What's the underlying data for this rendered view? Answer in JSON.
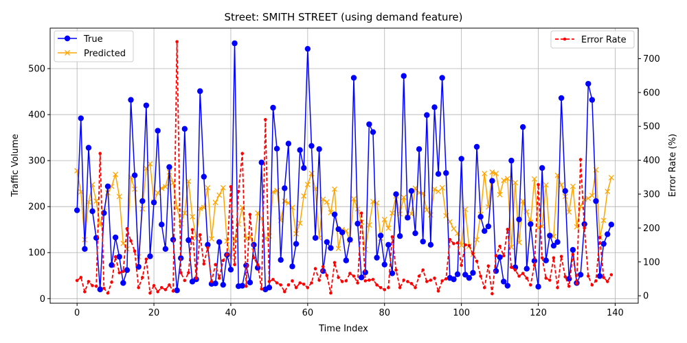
{
  "chart_data": {
    "type": "line",
    "title": "Street: SMITH STREET (using demand feature)",
    "xlabel": "Time Index",
    "ylabel_left": "Traffic Volume",
    "ylabel_right": "Error Rate (%)",
    "xlim": [
      -7,
      146
    ],
    "ylim_left": [
      -10,
      588
    ],
    "ylim_right": [
      -22,
      790
    ],
    "x_ticks": [
      0,
      20,
      40,
      60,
      80,
      100,
      120,
      140
    ],
    "y_ticks_left": [
      0,
      100,
      200,
      300,
      400,
      500
    ],
    "y_ticks_right": [
      0,
      100,
      200,
      300,
      400,
      500,
      600,
      700
    ],
    "grid": true,
    "legend_left": "upper-left",
    "legend_right": "upper-right",
    "colors": {
      "true": "#0000ff",
      "predicted": "#ffa500",
      "error": "#ff0000"
    },
    "series": [
      {
        "name": "True",
        "axis": "left",
        "values": [
          192,
          392,
          108,
          328,
          190,
          132,
          20,
          186,
          244,
          73,
          133,
          91,
          34,
          62,
          432,
          268,
          69,
          212,
          420,
          92,
          209,
          365,
          161,
          108,
          286,
          128,
          18,
          88,
          369,
          127,
          37,
          42,
          451,
          265,
          117,
          32,
          33,
          123,
          30,
          95,
          63,
          555,
          27,
          28,
          72,
          35,
          117,
          67,
          296,
          20,
          24,
          415,
          326,
          84,
          240,
          337,
          70,
          119,
          323,
          284,
          543,
          332,
          132,
          325,
          60,
          123,
          110,
          183,
          151,
          144,
          83,
          128,
          480,
          163,
          46,
          57,
          379,
          362,
          89,
          137,
          74,
          117,
          55,
          227,
          136,
          484,
          176,
          234,
          142,
          325,
          124,
          399,
          117,
          416,
          271,
          480,
          273,
          45,
          42,
          53,
          304,
          52,
          45,
          56,
          330,
          178,
          147,
          157,
          256,
          60,
          90,
          37,
          28,
          300,
          68,
          172,
          373,
          65,
          162,
          82,
          26,
          284,
          83,
          137,
          115,
          123,
          436,
          234,
          43,
          106,
          34,
          52,
          162,
          467,
          432,
          212,
          49,
          119,
          140,
          161
        ]
      },
      {
        "name": "Predicted",
        "axis": "left",
        "values": [
          278,
          232,
          128,
          210,
          248,
          212,
          160,
          190,
          230,
          244,
          270,
          222,
          120,
          108,
          264,
          238,
          91,
          195,
          283,
          293,
          210,
          230,
          240,
          243,
          275,
          252,
          198,
          163,
          186,
          255,
          178,
          131,
          196,
          198,
          241,
          130,
          209,
          225,
          241,
          125,
          90,
          129,
          162,
          198,
          130,
          136,
          112,
          186,
          175,
          130,
          136,
          232,
          235,
          170,
          212,
          208,
          198,
          141,
          164,
          223,
          248,
          272,
          238,
          132,
          216,
          210,
          187,
          238,
          109,
          150,
          147,
          127,
          217,
          195,
          166,
          107,
          160,
          211,
          208,
          131,
          172,
          153,
          186,
          223,
          184,
          220,
          177,
          184,
          240,
          230,
          229,
          193,
          182,
          238,
          233,
          241,
          180,
          167,
          152,
          142,
          116,
          194,
          114,
          96,
          128,
          183,
          272,
          199,
          275,
          272,
          226,
          257,
          261,
          112,
          252,
          122,
          212,
          189,
          166,
          260,
          154,
          157,
          247,
          136,
          135,
          268,
          247,
          222,
          188,
          244,
          156,
          201,
          216,
          218,
          224,
          280,
          133,
          170,
          233,
          263
        ]
      },
      {
        "name": "Error Rate",
        "axis": "right",
        "values": [
          45,
          54,
          12,
          42,
          30,
          28,
          420,
          22,
          8,
          40,
          115,
          68,
          72,
          198,
          162,
          132,
          24,
          54,
          108,
          8,
          30,
          12,
          24,
          18,
          32,
          14,
          750,
          68,
          45,
          68,
          195,
          52,
          180,
          94,
          142,
          42,
          92,
          52,
          104,
          122,
          322,
          92,
          308,
          420,
          28,
          240,
          112,
          92,
          20,
          520,
          42,
          48,
          38,
          32,
          12,
          32,
          44,
          24,
          38,
          34,
          24,
          38,
          80,
          46,
          86,
          60,
          8,
          98,
          54,
          42,
          44,
          66,
          58,
          38,
          244,
          44,
          46,
          48,
          32,
          24,
          18,
          24,
          174,
          76,
          24,
          46,
          42,
          36,
          24,
          58,
          76,
          42,
          46,
          52,
          14,
          44,
          50,
          166,
          154,
          156,
          90,
          150,
          148,
          124,
          102,
          58,
          24,
          88,
          6,
          118,
          146,
          118,
          196,
          84,
          76,
          58,
          66,
          52,
          32,
          90,
          328,
          112,
          52,
          46,
          112,
          24,
          116,
          56,
          28,
          122,
          36,
          402,
          200,
          58,
          32,
          44,
          172,
          54,
          42,
          62
        ]
      }
    ]
  }
}
